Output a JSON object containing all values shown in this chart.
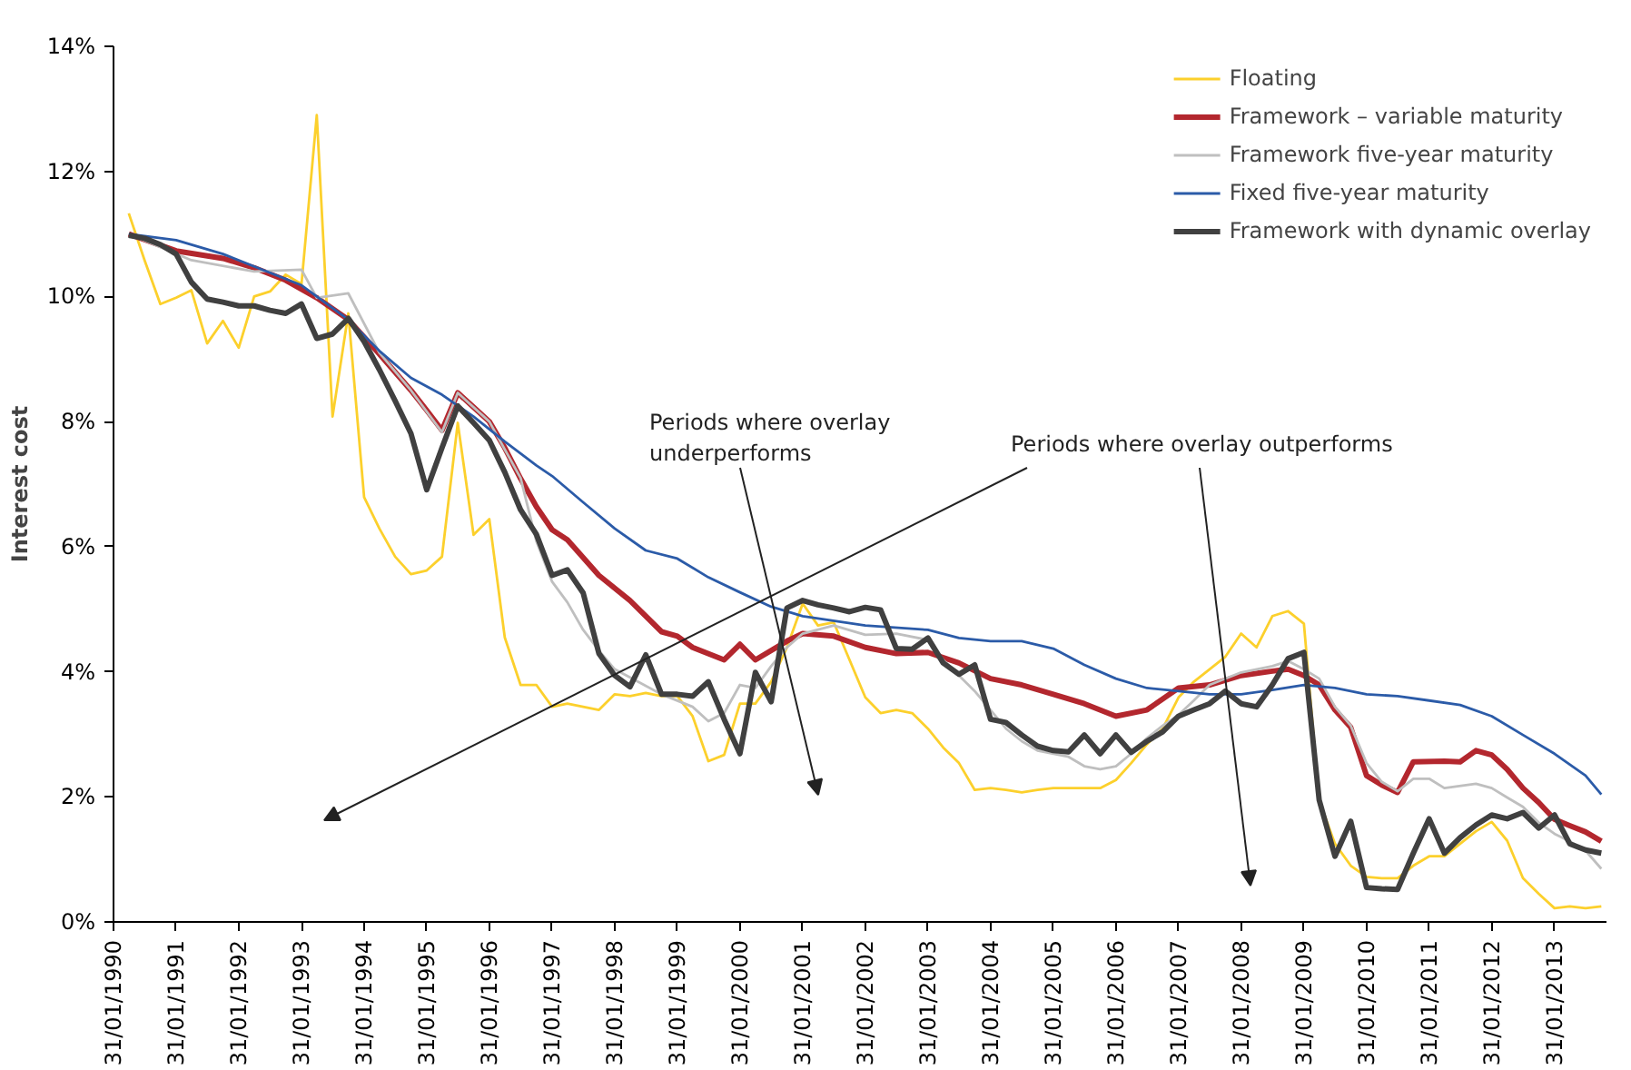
{
  "chart_data": {
    "type": "line",
    "ylabel": "Interest cost",
    "legend": "top right",
    "ylim": [
      0,
      14
    ],
    "yticks": [
      {
        "value": 0,
        "label": "0%"
      },
      {
        "value": 2,
        "label": "2%"
      },
      {
        "value": 4,
        "label": "4%"
      },
      {
        "value": 6,
        "label": "6%"
      },
      {
        "value": 8,
        "label": "8%"
      },
      {
        "value": 10,
        "label": "10%"
      },
      {
        "value": 12,
        "label": "12%"
      },
      {
        "value": 14,
        "label": "14%"
      }
    ],
    "xlim": [
      "1990-01-31",
      "2013-11-30"
    ],
    "xticks": [
      {
        "value": "1990-01-31",
        "label": "31/01/1990"
      },
      {
        "value": "1991-01-31",
        "label": "31/01/1991"
      },
      {
        "value": "1992-01-31",
        "label": "31/01/1992"
      },
      {
        "value": "1993-01-31",
        "label": "31/01/1993"
      },
      {
        "value": "1994-01-31",
        "label": "31/01/1994"
      },
      {
        "value": "1995-01-31",
        "label": "31/01/1995"
      },
      {
        "value": "1996-01-31",
        "label": "31/01/1996"
      },
      {
        "value": "1997-01-31",
        "label": "31/01/1997"
      },
      {
        "value": "1998-01-31",
        "label": "31/01/1998"
      },
      {
        "value": "1999-01-31",
        "label": "31/01/1999"
      },
      {
        "value": "2000-01-31",
        "label": "31/01/2000"
      },
      {
        "value": "2001-01-31",
        "label": "31/01/2001"
      },
      {
        "value": "2002-01-31",
        "label": "31/01/2002"
      },
      {
        "value": "2003-01-31",
        "label": "31/01/2003"
      },
      {
        "value": "2004-01-31",
        "label": "31/01/2004"
      },
      {
        "value": "2005-01-31",
        "label": "31/01/2005"
      },
      {
        "value": "2006-01-31",
        "label": "31/01/2006"
      },
      {
        "value": "2007-01-31",
        "label": "31/01/2007"
      },
      {
        "value": "2008-01-31",
        "label": "31/01/2008"
      },
      {
        "value": "2009-01-31",
        "label": "31/01/2009"
      },
      {
        "value": "2010-01-31",
        "label": "31/01/2010"
      },
      {
        "value": "2011-01-31",
        "label": "31/01/2011"
      },
      {
        "value": "2012-01-31",
        "label": "31/01/2012"
      },
      {
        "value": "2013-01-31",
        "label": "31/01/2013"
      }
    ],
    "annotations": [
      "Periods where overlay underperforms",
      "Periods where overlay outperforms"
    ],
    "x": [
      "1990-04-30",
      "1990-07-31",
      "1990-10-31",
      "1991-01-31",
      "1991-04-30",
      "1991-07-31",
      "1991-10-31",
      "1992-01-31",
      "1992-04-30",
      "1992-07-31",
      "1992-10-31",
      "1993-01-31",
      "1993-04-30",
      "1993-07-31",
      "1993-10-31",
      "1994-01-31",
      "1994-04-30",
      "1994-07-31",
      "1994-10-31",
      "1995-01-31",
      "1995-04-30",
      "1995-07-31",
      "1995-10-31",
      "1996-01-31",
      "1996-04-30",
      "1996-07-31",
      "1996-10-31",
      "1997-01-31",
      "1997-04-30",
      "1997-07-31",
      "1997-10-31",
      "1998-01-31",
      "1998-04-30",
      "1998-07-31",
      "1998-10-31",
      "1999-01-31",
      "1999-04-30",
      "1999-07-31",
      "1999-10-31",
      "2000-01-31",
      "2000-04-30",
      "2000-07-31",
      "2000-10-31",
      "2001-01-31",
      "2001-04-30",
      "2001-07-31",
      "2001-10-31",
      "2002-01-31",
      "2002-04-30",
      "2002-07-31",
      "2002-10-31",
      "2003-01-31",
      "2003-04-30",
      "2003-07-31",
      "2003-10-31",
      "2004-01-31",
      "2004-04-30",
      "2004-07-31",
      "2004-10-31",
      "2005-01-31",
      "2005-04-30",
      "2005-07-31",
      "2005-10-31",
      "2006-01-31",
      "2006-04-30",
      "2006-07-31",
      "2006-10-31",
      "2007-01-31",
      "2007-04-30",
      "2007-07-31",
      "2007-10-31",
      "2008-01-31",
      "2008-04-30",
      "2008-07-31",
      "2008-10-31",
      "2009-01-31",
      "2009-04-30",
      "2009-07-31",
      "2009-10-31",
      "2010-01-31",
      "2010-04-30",
      "2010-07-31",
      "2010-10-31",
      "2011-01-31",
      "2011-04-30",
      "2011-07-31",
      "2011-10-31",
      "2012-01-31",
      "2012-04-30",
      "2012-07-31",
      "2012-10-31",
      "2013-01-31",
      "2013-04-30",
      "2013-07-31",
      "2013-10-31"
    ],
    "series": [
      {
        "name": "Floating",
        "color": "#fcd02c",
        "values": [
          11.33,
          10.58,
          9.88,
          9.98,
          10.1,
          9.25,
          9.61,
          9.18,
          10.0,
          10.08,
          10.35,
          10.2,
          12.9,
          8.08,
          9.73,
          6.79,
          6.29,
          5.84,
          5.56,
          5.62,
          5.84,
          7.98,
          6.19,
          6.44,
          4.55,
          3.79,
          3.79,
          3.44,
          3.49,
          3.44,
          3.39,
          3.64,
          3.61,
          3.66,
          3.61,
          3.61,
          3.29,
          2.57,
          2.67,
          3.49,
          3.49,
          3.84,
          4.39,
          5.09,
          4.74,
          4.79,
          4.19,
          3.59,
          3.34,
          3.39,
          3.34,
          3.09,
          2.79,
          2.54,
          2.11,
          2.14,
          2.11,
          2.07,
          2.11,
          2.14,
          2.14,
          2.14,
          2.14,
          2.27,
          2.54,
          2.84,
          3.09,
          3.59,
          3.84,
          4.04,
          4.24,
          4.61,
          4.39,
          4.89,
          4.97,
          4.77,
          1.94,
          1.25,
          0.9,
          0.72,
          0.7,
          0.7,
          0.9,
          1.05,
          1.05,
          1.25,
          1.45,
          1.6,
          1.3,
          0.7,
          0.45,
          0.22,
          0.25,
          0.22,
          0.25
        ]
      },
      {
        "name": "Framework – variable maturity",
        "color": "#b3272e",
        "x": [
          "1990-04-30",
          "1991-01-31",
          "1991-10-31",
          "1992-04-30",
          "1992-10-31",
          "1993-04-30",
          "1993-10-31",
          "1994-04-30",
          "1994-10-31",
          "1995-01-31",
          "1995-04-30",
          "1995-07-31",
          "1995-10-31",
          "1996-01-31",
          "1996-04-30",
          "1996-07-31",
          "1996-10-31",
          "1997-01-31",
          "1997-04-30",
          "1997-10-31",
          "1998-04-30",
          "1998-10-31",
          "1999-01-31",
          "1999-04-30",
          "1999-10-31",
          "2000-01-31",
          "2000-04-30",
          "2000-10-31",
          "2001-01-31",
          "2001-07-31",
          "2002-01-31",
          "2002-07-31",
          "2003-01-31",
          "2003-07-31",
          "2004-01-31",
          "2004-07-31",
          "2005-01-31",
          "2005-07-31",
          "2006-01-31",
          "2006-07-31",
          "2007-01-31",
          "2007-07-31",
          "2008-01-31",
          "2008-07-31",
          "2008-10-31",
          "2009-01-31",
          "2009-04-30",
          "2009-07-31",
          "2009-10-31",
          "2010-01-31",
          "2010-04-30",
          "2010-07-31",
          "2010-10-31",
          "2011-04-30",
          "2011-07-31",
          "2011-10-31",
          "2012-01-31",
          "2012-04-30",
          "2012-07-31",
          "2012-10-31",
          "2013-01-31",
          "2013-04-30",
          "2013-07-31",
          "2013-10-31"
        ],
        "values": [
          11.0,
          10.73,
          10.61,
          10.46,
          10.26,
          9.98,
          9.63,
          9.08,
          8.5,
          8.18,
          7.86,
          8.46,
          8.23,
          8.0,
          7.58,
          7.09,
          6.64,
          6.27,
          6.11,
          5.54,
          5.14,
          4.64,
          4.57,
          4.39,
          4.19,
          4.44,
          4.19,
          4.49,
          4.61,
          4.57,
          4.39,
          4.29,
          4.31,
          4.14,
          3.89,
          3.79,
          3.64,
          3.49,
          3.29,
          3.39,
          3.74,
          3.79,
          3.94,
          4.01,
          4.04,
          3.94,
          3.79,
          3.39,
          3.11,
          2.34,
          2.19,
          2.07,
          2.56,
          2.57,
          2.56,
          2.74,
          2.67,
          2.44,
          2.14,
          1.91,
          1.64,
          1.54,
          1.44,
          1.29
        ]
      },
      {
        "name": "Framework five-year maturity",
        "color": "#bfbfbf",
        "x": [
          "1990-04-30",
          "1991-04-30",
          "1992-04-30",
          "1993-01-31",
          "1993-04-30",
          "1993-10-31",
          "1994-04-30",
          "1994-10-31",
          "1995-04-30",
          "1995-07-31",
          "1996-01-31",
          "1996-07-31",
          "1996-10-31",
          "1997-01-31",
          "1997-04-30",
          "1997-07-31",
          "1997-10-31",
          "1998-01-31",
          "1998-04-30",
          "1998-10-31",
          "1999-04-30",
          "1999-07-31",
          "1999-10-31",
          "2000-01-31",
          "2000-04-30",
          "2000-07-31",
          "2000-10-31",
          "2001-01-31",
          "2001-07-31",
          "2002-01-31",
          "2002-07-31",
          "2003-01-31",
          "2003-04-30",
          "2003-07-31",
          "2003-10-31",
          "2004-01-31",
          "2004-04-30",
          "2004-07-31",
          "2004-10-31",
          "2005-04-30",
          "2005-07-31",
          "2005-10-31",
          "2006-01-31",
          "2006-04-30",
          "2006-07-31",
          "2006-10-31",
          "2007-01-31",
          "2007-04-30",
          "2007-07-31",
          "2008-01-31",
          "2008-07-31",
          "2008-10-31",
          "2009-01-31",
          "2009-04-30",
          "2009-07-31",
          "2009-10-31",
          "2010-01-31",
          "2010-04-30",
          "2010-07-31",
          "2010-10-31",
          "2011-01-31",
          "2011-04-30",
          "2011-10-31",
          "2012-01-31",
          "2012-04-30",
          "2012-07-31",
          "2012-10-31",
          "2013-01-31",
          "2013-04-30",
          "2013-07-31",
          "2013-10-31"
        ],
        "values": [
          11.0,
          10.58,
          10.4,
          10.43,
          9.98,
          10.05,
          9.1,
          8.5,
          7.83,
          8.46,
          8.0,
          7.1,
          6.09,
          5.44,
          5.11,
          4.67,
          4.34,
          4.04,
          3.91,
          3.64,
          3.44,
          3.21,
          3.34,
          3.79,
          3.74,
          4.09,
          4.39,
          4.61,
          4.74,
          4.59,
          4.61,
          4.51,
          4.19,
          3.94,
          3.69,
          3.39,
          3.09,
          2.89,
          2.74,
          2.64,
          2.49,
          2.44,
          2.49,
          2.69,
          2.94,
          3.14,
          3.31,
          3.54,
          3.79,
          3.99,
          4.09,
          4.17,
          4.04,
          3.89,
          3.44,
          3.14,
          2.54,
          2.24,
          2.09,
          2.29,
          2.29,
          2.14,
          2.21,
          2.14,
          1.99,
          1.84,
          1.59,
          1.41,
          1.29,
          1.14,
          0.85
        ]
      },
      {
        "name": "Fixed five-year maturity",
        "color": "#2b5ba8",
        "x": [
          "1990-04-30",
          "1991-01-31",
          "1991-10-31",
          "1992-07-31",
          "1993-01-31",
          "1993-10-31",
          "1994-04-30",
          "1994-10-31",
          "1995-04-30",
          "1995-10-31",
          "1996-04-30",
          "1996-10-31",
          "1997-01-31",
          "1997-07-31",
          "1998-01-31",
          "1998-07-31",
          "1999-01-31",
          "1999-07-31",
          "2000-01-31",
          "2000-07-31",
          "2001-01-31",
          "2002-01-31",
          "2003-01-31",
          "2003-07-31",
          "2004-01-31",
          "2004-07-31",
          "2005-01-31",
          "2005-07-31",
          "2006-01-31",
          "2006-07-31",
          "2007-01-31",
          "2007-07-31",
          "2008-01-31",
          "2008-07-31",
          "2009-01-31",
          "2009-07-31",
          "2010-01-31",
          "2010-07-31",
          "2011-01-31",
          "2011-07-31",
          "2012-01-31",
          "2012-07-31",
          "2013-01-31",
          "2013-07-31",
          "2013-10-31"
        ],
        "values": [
          11.0,
          10.9,
          10.68,
          10.38,
          10.18,
          9.63,
          9.13,
          8.7,
          8.43,
          8.08,
          7.68,
          7.3,
          7.13,
          6.71,
          6.29,
          5.94,
          5.81,
          5.51,
          5.27,
          5.04,
          4.89,
          4.74,
          4.67,
          4.54,
          4.49,
          4.49,
          4.37,
          4.11,
          3.89,
          3.74,
          3.69,
          3.64,
          3.64,
          3.71,
          3.79,
          3.74,
          3.64,
          3.61,
          3.54,
          3.47,
          3.29,
          2.99,
          2.69,
          2.34,
          2.04
        ]
      },
      {
        "name": "Framework with dynamic overlay",
        "color": "#404040",
        "values": [
          10.98,
          10.93,
          10.83,
          10.68,
          10.23,
          9.96,
          9.91,
          9.85,
          9.85,
          9.78,
          9.73,
          9.88,
          9.33,
          9.4,
          9.65,
          9.28,
          8.83,
          8.33,
          7.81,
          6.91,
          7.58,
          8.25,
          7.98,
          7.7,
          7.19,
          6.59,
          6.2,
          5.54,
          5.63,
          5.26,
          4.29,
          3.94,
          3.76,
          4.27,
          3.64,
          3.64,
          3.61,
          3.84,
          3.24,
          2.69,
          3.99,
          3.52,
          5.02,
          5.14,
          5.07,
          5.02,
          4.96,
          5.03,
          4.99,
          4.37,
          4.36,
          4.54,
          4.14,
          3.96,
          4.11,
          3.24,
          3.19,
          2.99,
          2.81,
          2.74,
          2.72,
          2.99,
          2.69,
          2.99,
          2.71,
          2.89,
          3.04,
          3.29,
          3.39,
          3.49,
          3.69,
          3.49,
          3.44,
          3.79,
          4.21,
          4.31,
          1.95,
          1.05,
          1.61,
          0.55,
          0.53,
          0.52,
          1.1,
          1.65,
          1.1,
          1.35,
          1.55,
          1.71,
          1.65,
          1.75,
          1.5,
          1.71,
          1.25,
          1.15,
          1.1
        ]
      }
    ]
  }
}
